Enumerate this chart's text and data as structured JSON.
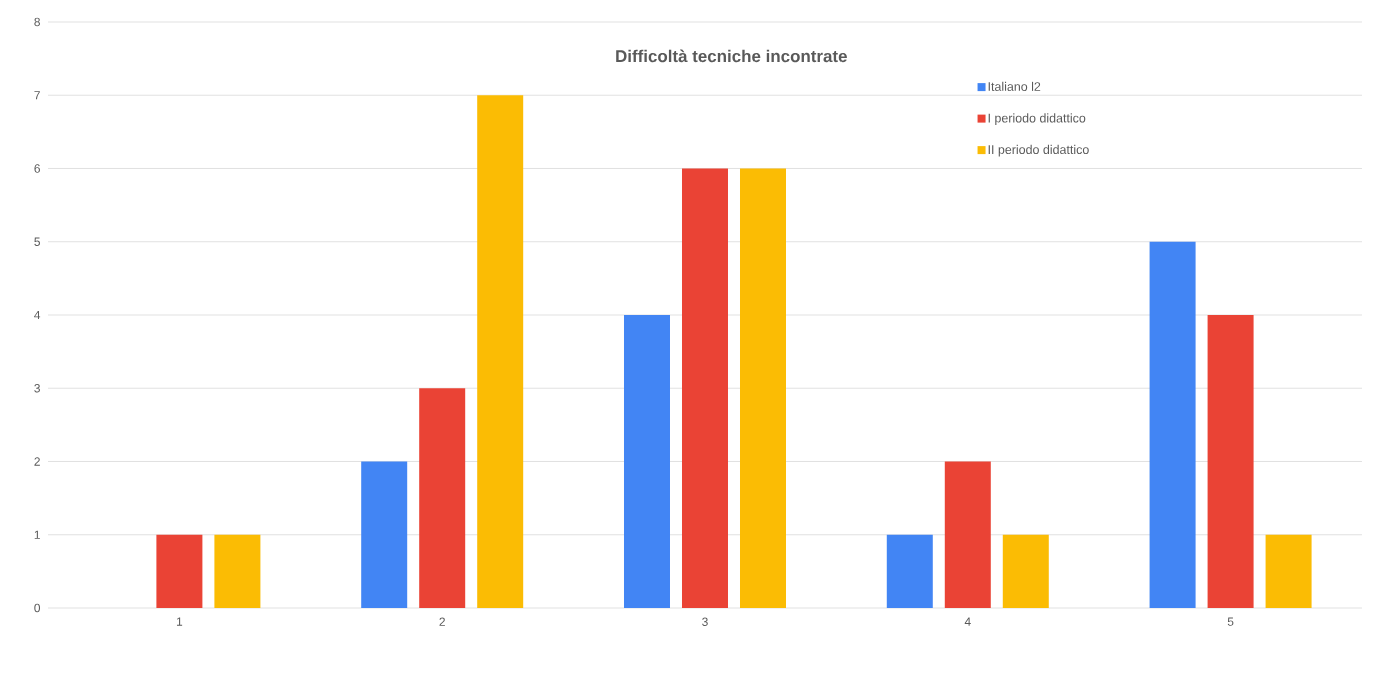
{
  "chart_data": {
    "type": "bar",
    "title": "Difficoltà tecniche incontrate",
    "categories": [
      "1",
      "2",
      "3",
      "4",
      "5"
    ],
    "series": [
      {
        "name": "Italiano l2",
        "color": "#4285f4",
        "values": [
          0,
          2,
          4,
          1,
          5
        ]
      },
      {
        "name": "I periodo didattico",
        "color": "#ea4335",
        "values": [
          1,
          3,
          6,
          2,
          4
        ]
      },
      {
        "name": "II periodo didattico",
        "color": "#fbbc04",
        "values": [
          1,
          7,
          6,
          1,
          1
        ]
      }
    ],
    "ylim": [
      0,
      8
    ],
    "yticks": [
      0,
      1,
      2,
      3,
      4,
      5,
      6,
      7,
      8
    ],
    "grid": "y",
    "legend": "top right"
  }
}
